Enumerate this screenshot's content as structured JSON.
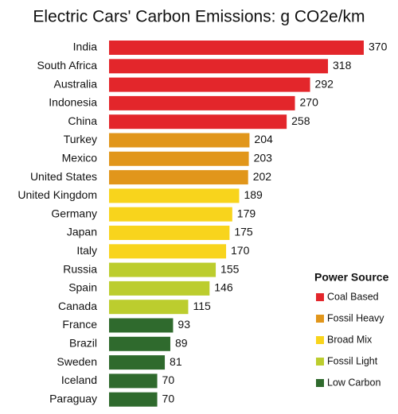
{
  "chart_data": {
    "type": "barh",
    "title": "Electric Cars' Carbon Emissions: g CO2e/km",
    "categories": [
      "India",
      "South Africa",
      "Australia",
      "Indonesia",
      "China",
      "Turkey",
      "Mexico",
      "United States",
      "United Kingdom",
      "Germany",
      "Japan",
      "Italy",
      "Russia",
      "Spain",
      "Canada",
      "France",
      "Brazil",
      "Sweden",
      "Iceland",
      "Paraguay"
    ],
    "legend_title": "Power Source",
    "series": [
      {
        "name": "Coal Based",
        "color": "#e3262b",
        "values": [
          370,
          318,
          292,
          270,
          258,
          null,
          null,
          null,
          null,
          null,
          null,
          null,
          null,
          null,
          null,
          null,
          null,
          null,
          null,
          null
        ]
      },
      {
        "name": "Fossil Heavy",
        "color": "#e1961b",
        "values": [
          null,
          null,
          null,
          null,
          null,
          204,
          203,
          202,
          null,
          null,
          null,
          null,
          null,
          null,
          null,
          null,
          null,
          null,
          null,
          null
        ]
      },
      {
        "name": "Broad Mix",
        "color": "#f8d41c",
        "values": [
          null,
          null,
          null,
          null,
          null,
          null,
          null,
          null,
          189,
          179,
          175,
          170,
          null,
          null,
          null,
          null,
          null,
          null,
          null,
          null
        ]
      },
      {
        "name": "Fossil Light",
        "color": "#bccd2e",
        "values": [
          null,
          null,
          null,
          null,
          null,
          null,
          null,
          null,
          null,
          null,
          null,
          null,
          155,
          146,
          115,
          null,
          null,
          null,
          null,
          null
        ]
      },
      {
        "name": "Low Carbon",
        "color": "#2f6a2d",
        "values": [
          null,
          null,
          null,
          null,
          null,
          null,
          null,
          null,
          null,
          null,
          null,
          null,
          null,
          null,
          null,
          93,
          89,
          81,
          70,
          70
        ]
      }
    ]
  }
}
